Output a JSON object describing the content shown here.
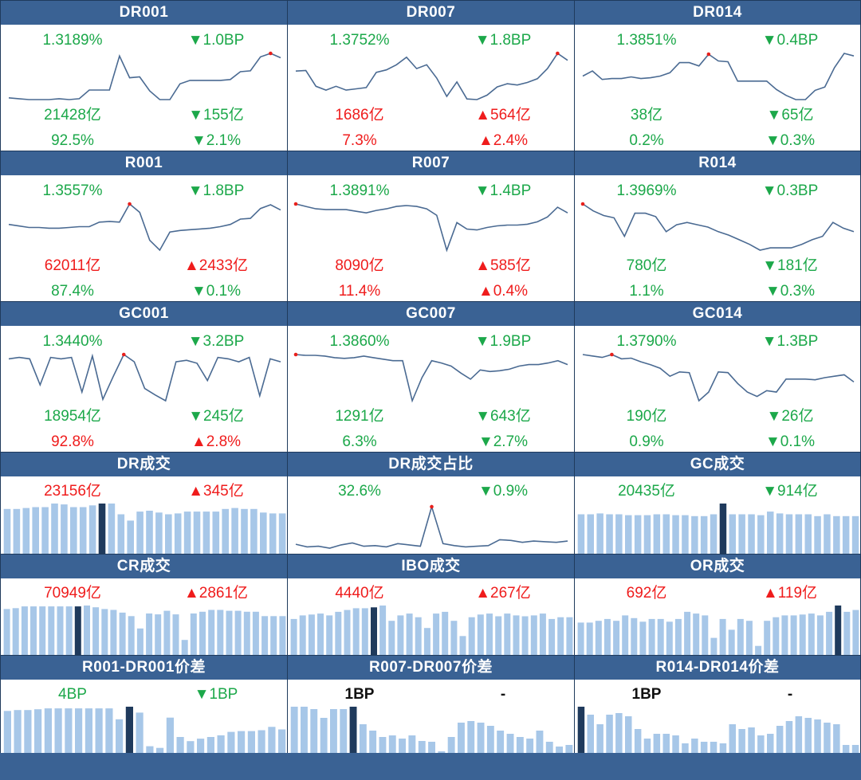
{
  "colors": {
    "header_bg": "#3a6294",
    "line": "#4a6a92",
    "bar": "#a7c7e8",
    "bar_highlight": "#1f3a5c",
    "up": "#ef1c1c",
    "down": "#1ca84a",
    "marker": "#e8201c"
  },
  "panels": [
    {
      "id": "dr001",
      "title": "DR001",
      "type": "line",
      "rate": {
        "text": "1.3189%",
        "color": "green"
      },
      "change": {
        "text": "▼1.0BP",
        "color": "green"
      },
      "volume": {
        "text": "21428亿",
        "color": "green"
      },
      "volume_change": {
        "text": "▼155亿",
        "color": "green"
      },
      "share": {
        "text": "92.5%",
        "color": "green"
      },
      "share_change": {
        "text": "▼2.1%",
        "color": "green"
      },
      "chart_data": {
        "type": "line",
        "values": [
          1.282,
          1.281,
          1.28,
          1.28,
          1.28,
          1.281,
          1.28,
          1.281,
          1.291,
          1.291,
          1.291,
          1.33,
          1.305,
          1.306,
          1.29,
          1.28,
          1.28,
          1.298,
          1.302,
          1.302,
          1.302,
          1.302,
          1.303,
          1.312,
          1.313,
          1.329,
          1.333,
          1.328
        ],
        "marker_index": 26
      }
    },
    {
      "id": "dr007",
      "title": "DR007",
      "type": "line",
      "rate": {
        "text": "1.3752%",
        "color": "green"
      },
      "change": {
        "text": "▼1.8BP",
        "color": "green"
      },
      "volume": {
        "text": "1686亿",
        "color": "red"
      },
      "volume_change": {
        "text": "▲564亿",
        "color": "red"
      },
      "share": {
        "text": "7.3%",
        "color": "red"
      },
      "share_change": {
        "text": "▲2.4%",
        "color": "red"
      },
      "chart_data": {
        "type": "line",
        "values": [
          1.39,
          1.391,
          1.366,
          1.36,
          1.366,
          1.36,
          1.362,
          1.364,
          1.388,
          1.392,
          1.4,
          1.412,
          1.394,
          1.4,
          1.379,
          1.35,
          1.373,
          1.346,
          1.345,
          1.352,
          1.365,
          1.37,
          1.368,
          1.372,
          1.378,
          1.394,
          1.418,
          1.407
        ],
        "marker_index": 26
      }
    },
    {
      "id": "dr014",
      "title": "DR014",
      "type": "line",
      "rate": {
        "text": "1.3851%",
        "color": "green"
      },
      "change": {
        "text": "▼0.4BP",
        "color": "green"
      },
      "volume": {
        "text": "38亿",
        "color": "green"
      },
      "volume_change": {
        "text": "▼65亿",
        "color": "green"
      },
      "share": {
        "text": "0.2%",
        "color": "green"
      },
      "share_change": {
        "text": "▼0.3%",
        "color": "green"
      },
      "chart_data": {
        "type": "line",
        "values": [
          1.396,
          1.402,
          1.392,
          1.393,
          1.393,
          1.395,
          1.393,
          1.394,
          1.396,
          1.4,
          1.412,
          1.412,
          1.408,
          1.422,
          1.414,
          1.413,
          1.39,
          1.39,
          1.39,
          1.39,
          1.38,
          1.373,
          1.368,
          1.368,
          1.379,
          1.383,
          1.406,
          1.423,
          1.42
        ],
        "marker_index": 13
      }
    },
    {
      "id": "r001",
      "title": "R001",
      "type": "line",
      "rate": {
        "text": "1.3557%",
        "color": "green"
      },
      "change": {
        "text": "▼1.8BP",
        "color": "green"
      },
      "volume": {
        "text": "62011亿",
        "color": "red"
      },
      "volume_change": {
        "text": "▲2433亿",
        "color": "red"
      },
      "share": {
        "text": "87.4%",
        "color": "green"
      },
      "share_change": {
        "text": "▼0.1%",
        "color": "green"
      },
      "chart_data": {
        "type": "line",
        "values": [
          1.336,
          1.334,
          1.332,
          1.332,
          1.331,
          1.331,
          1.332,
          1.333,
          1.333,
          1.339,
          1.34,
          1.339,
          1.363,
          1.352,
          1.315,
          1.302,
          1.326,
          1.328,
          1.329,
          1.33,
          1.331,
          1.333,
          1.336,
          1.343,
          1.344,
          1.357,
          1.362,
          1.355
        ],
        "marker_index": 12
      }
    },
    {
      "id": "r007",
      "title": "R007",
      "type": "line",
      "rate": {
        "text": "1.3891%",
        "color": "green"
      },
      "change": {
        "text": "▼1.4BP",
        "color": "green"
      },
      "volume": {
        "text": "8090亿",
        "color": "red"
      },
      "volume_change": {
        "text": "▲585亿",
        "color": "red"
      },
      "share": {
        "text": "11.4%",
        "color": "red"
      },
      "share_change": {
        "text": "▲0.4%",
        "color": "red"
      },
      "chart_data": {
        "type": "line",
        "values": [
          1.403,
          1.4,
          1.397,
          1.396,
          1.396,
          1.396,
          1.394,
          1.392,
          1.395,
          1.397,
          1.4,
          1.401,
          1.4,
          1.397,
          1.389,
          1.346,
          1.38,
          1.372,
          1.371,
          1.374,
          1.376,
          1.377,
          1.377,
          1.378,
          1.381,
          1.387,
          1.399,
          1.392
        ],
        "marker_index": 0
      }
    },
    {
      "id": "r014",
      "title": "R014",
      "type": "line",
      "rate": {
        "text": "1.3969%",
        "color": "green"
      },
      "change": {
        "text": "▼0.3BP",
        "color": "green"
      },
      "volume": {
        "text": "780亿",
        "color": "green"
      },
      "volume_change": {
        "text": "▼181亿",
        "color": "green"
      },
      "share": {
        "text": "1.1%",
        "color": "green"
      },
      "share_change": {
        "text": "▼0.3%",
        "color": "green"
      },
      "chart_data": {
        "type": "line",
        "values": [
          1.42,
          1.414,
          1.41,
          1.408,
          1.392,
          1.412,
          1.412,
          1.409,
          1.396,
          1.402,
          1.404,
          1.402,
          1.4,
          1.396,
          1.393,
          1.389,
          1.385,
          1.38,
          1.382,
          1.382,
          1.382,
          1.385,
          1.389,
          1.392,
          1.404,
          1.399,
          1.396
        ],
        "marker_index": 0
      }
    },
    {
      "id": "gc001",
      "title": "GC001",
      "type": "line",
      "rate": {
        "text": "1.3440%",
        "color": "green"
      },
      "change": {
        "text": "▼3.2BP",
        "color": "green"
      },
      "volume": {
        "text": "18954亿",
        "color": "green"
      },
      "volume_change": {
        "text": "▼245亿",
        "color": "green"
      },
      "share": {
        "text": "92.8%",
        "color": "red"
      },
      "share_change": {
        "text": "▲2.8%",
        "color": "red"
      },
      "chart_data": {
        "type": "line",
        "values": [
          1.376,
          1.378,
          1.376,
          1.34,
          1.378,
          1.376,
          1.378,
          1.33,
          1.38,
          1.32,
          1.352,
          1.382,
          1.372,
          1.335,
          1.326,
          1.318,
          1.372,
          1.374,
          1.37,
          1.346,
          1.378,
          1.376,
          1.372,
          1.378,
          1.325,
          1.376,
          1.372
        ],
        "marker_index": 11
      }
    },
    {
      "id": "gc007",
      "title": "GC007",
      "type": "line",
      "rate": {
        "text": "1.3860%",
        "color": "green"
      },
      "change": {
        "text": "▼1.9BP",
        "color": "green"
      },
      "volume": {
        "text": "1291亿",
        "color": "green"
      },
      "volume_change": {
        "text": "▼643亿",
        "color": "green"
      },
      "share": {
        "text": "6.3%",
        "color": "green"
      },
      "share_change": {
        "text": "▼2.7%",
        "color": "green"
      },
      "chart_data": {
        "type": "line",
        "values": [
          1.42,
          1.419,
          1.419,
          1.418,
          1.416,
          1.415,
          1.416,
          1.418,
          1.416,
          1.414,
          1.412,
          1.412,
          1.36,
          1.39,
          1.412,
          1.409,
          1.405,
          1.396,
          1.388,
          1.4,
          1.398,
          1.399,
          1.401,
          1.405,
          1.407,
          1.407,
          1.409,
          1.412,
          1.407
        ],
        "marker_index": 0
      }
    },
    {
      "id": "gc014",
      "title": "GC014",
      "type": "line",
      "rate": {
        "text": "1.3790%",
        "color": "green"
      },
      "change": {
        "text": "▼1.3BP",
        "color": "green"
      },
      "volume": {
        "text": "190亿",
        "color": "green"
      },
      "volume_change": {
        "text": "▼26亿",
        "color": "green"
      },
      "share": {
        "text": "0.9%",
        "color": "green"
      },
      "share_change": {
        "text": "▼0.1%",
        "color": "green"
      },
      "chart_data": {
        "type": "line",
        "values": [
          1.424,
          1.422,
          1.42,
          1.424,
          1.418,
          1.419,
          1.414,
          1.41,
          1.405,
          1.394,
          1.4,
          1.399,
          1.36,
          1.372,
          1.4,
          1.399,
          1.384,
          1.372,
          1.366,
          1.374,
          1.372,
          1.39,
          1.39,
          1.39,
          1.389,
          1.392,
          1.394,
          1.396,
          1.386
        ],
        "marker_index": 3
      }
    },
    {
      "id": "dr_volume",
      "title": "DR成交",
      "type": "bar",
      "rate": {
        "text": "23156亿",
        "color": "red"
      },
      "change": {
        "text": "▲345亿",
        "color": "red"
      },
      "chart_data": {
        "type": "bar",
        "values": [
          50,
          50,
          51,
          52,
          52,
          56,
          55,
          52,
          52,
          54,
          56,
          56,
          44,
          37,
          47,
          48,
          46,
          44,
          45,
          47,
          47,
          47,
          47,
          50,
          51,
          50,
          50,
          46,
          45,
          45
        ],
        "highlight_index": 10
      }
    },
    {
      "id": "dr_share",
      "title": "DR成交占比",
      "type": "line_flat",
      "rate": {
        "text": "32.6%",
        "color": "green"
      },
      "change": {
        "text": "▼0.9%",
        "color": "green"
      },
      "chart_data": {
        "type": "line",
        "values": [
          28.2,
          27.8,
          27.9,
          27.6,
          28.1,
          28.4,
          27.9,
          28.0,
          27.8,
          28.3,
          28.1,
          27.9,
          34.0,
          28.3,
          28.0,
          27.8,
          27.9,
          28.0,
          28.9,
          28.8,
          28.5,
          28.7,
          28.6,
          28.5,
          28.7
        ],
        "marker_index": 12
      }
    },
    {
      "id": "gc_volume",
      "title": "GC成交",
      "type": "bar",
      "rate": {
        "text": "20435亿",
        "color": "green"
      },
      "change": {
        "text": "▼914亿",
        "color": "green"
      },
      "chart_data": {
        "type": "bar",
        "values": [
          44,
          44,
          45,
          44,
          44,
          43,
          43,
          43,
          44,
          44,
          43,
          43,
          42,
          42,
          44,
          56,
          44,
          44,
          44,
          43,
          47,
          45,
          44,
          44,
          44,
          42,
          44,
          42,
          42,
          42
        ],
        "highlight_index": 15
      }
    },
    {
      "id": "cr_volume",
      "title": "CR成交",
      "type": "bar",
      "rate": {
        "text": "70949亿",
        "color": "red"
      },
      "change": {
        "text": "▲2861亿",
        "color": "red"
      },
      "chart_data": {
        "type": "bar",
        "values": [
          52,
          53,
          55,
          55,
          55,
          55,
          55,
          55,
          55,
          56,
          54,
          52,
          51,
          48,
          44,
          30,
          47,
          46,
          50,
          46,
          17,
          47,
          49,
          51,
          51,
          50,
          50,
          49,
          49,
          44,
          44,
          44
        ],
        "highlight_index": 8
      }
    },
    {
      "id": "ibo_volume",
      "title": "IBO成交",
      "type": "bar",
      "rate": {
        "text": "4440亿",
        "color": "red"
      },
      "change": {
        "text": "▲267亿",
        "color": "red"
      },
      "chart_data": {
        "type": "bar",
        "values": [
          40,
          44,
          45,
          46,
          44,
          48,
          50,
          52,
          52,
          53,
          55,
          38,
          44,
          46,
          42,
          30,
          46,
          48,
          38,
          21,
          42,
          45,
          46,
          43,
          46,
          44,
          43,
          44,
          46,
          40,
          42,
          42
        ],
        "highlight_index": 9
      }
    },
    {
      "id": "or_volume",
      "title": "OR成交",
      "type": "bar",
      "rate": {
        "text": "692亿",
        "color": "red"
      },
      "change": {
        "text": "▲119亿",
        "color": "red"
      },
      "chart_data": {
        "type": "bar",
        "values": [
          36,
          36,
          38,
          40,
          38,
          44,
          41,
          37,
          40,
          40,
          37,
          40,
          48,
          46,
          44,
          19,
          40,
          28,
          40,
          38,
          10,
          38,
          42,
          44,
          44,
          45,
          46,
          44,
          48,
          55,
          48,
          50
        ],
        "highlight_index": 29
      }
    },
    {
      "id": "r001_dr001",
      "title": "R001-DR001价差",
      "type": "bar",
      "rate": {
        "text": "4BP",
        "color": "green"
      },
      "change": {
        "text": "▼1BP",
        "color": "green"
      },
      "chart_data": {
        "type": "bar",
        "values": [
          50,
          51,
          51,
          52,
          53,
          53,
          53,
          53,
          53,
          53,
          53,
          40,
          55,
          48,
          8,
          6,
          42,
          19,
          14,
          17,
          19,
          21,
          25,
          26,
          26,
          27,
          31,
          28
        ],
        "highlight_index": 12
      }
    },
    {
      "id": "r007_dr007",
      "title": "R007-DR007价差",
      "type": "bar",
      "rate": {
        "text": "1BP",
        "color": "black"
      },
      "change": {
        "text": "-",
        "color": "black"
      },
      "chart_data": {
        "type": "bar",
        "values": [
          58,
          58,
          55,
          44,
          55,
          55,
          58,
          36,
          28,
          20,
          22,
          18,
          22,
          15,
          14,
          2,
          20,
          38,
          40,
          38,
          34,
          28,
          24,
          20,
          18,
          28,
          14,
          8,
          10
        ],
        "highlight_index": 6
      }
    },
    {
      "id": "r014_dr014",
      "title": "R014-DR014价差",
      "type": "bar",
      "rate": {
        "text": "1BP",
        "color": "black"
      },
      "change": {
        "text": "-",
        "color": "black"
      },
      "chart_data": {
        "type": "bar",
        "values": [
          58,
          48,
          36,
          48,
          50,
          46,
          30,
          18,
          24,
          24,
          22,
          12,
          18,
          14,
          14,
          12,
          36,
          30,
          32,
          22,
          24,
          34,
          40,
          46,
          44,
          42,
          38,
          36,
          10,
          10
        ],
        "highlight_index": 0
      }
    }
  ]
}
